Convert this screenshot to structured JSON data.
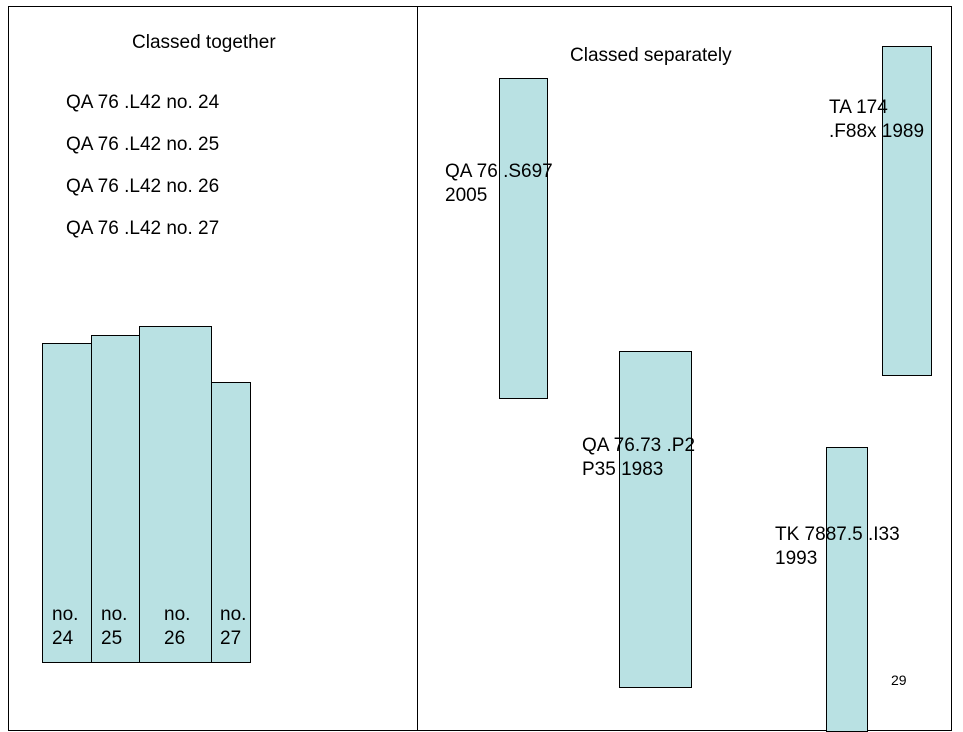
{
  "left_panel": {
    "heading": "Classed together",
    "call_numbers": [
      "QA 76 .L42 no. 24",
      "QA 76 .L42 no. 25",
      "QA 76 .L42 no. 26",
      "QA 76 .L42 no. 27"
    ],
    "books": [
      {
        "line1": "no.",
        "line2": "24"
      },
      {
        "line1": "no.",
        "line2": "25"
      },
      {
        "line1": "no.",
        "line2": "26"
      },
      {
        "line1": "no.",
        "line2": "27"
      }
    ]
  },
  "right_panel": {
    "heading": "Classed separately",
    "books": [
      {
        "line1": "QA 76 .S697",
        "line2": "2005"
      },
      {
        "line1": "TA 174",
        "line2": ".F88x 1989"
      },
      {
        "line1": "QA 76.73 .P2",
        "line2": "P35 1983"
      },
      {
        "line1": "TK 7887.5 .I33",
        "line2": "1993"
      }
    ]
  },
  "page_number": "29",
  "colors": {
    "book_fill": "#b9e1e3",
    "outline": "#000000"
  }
}
